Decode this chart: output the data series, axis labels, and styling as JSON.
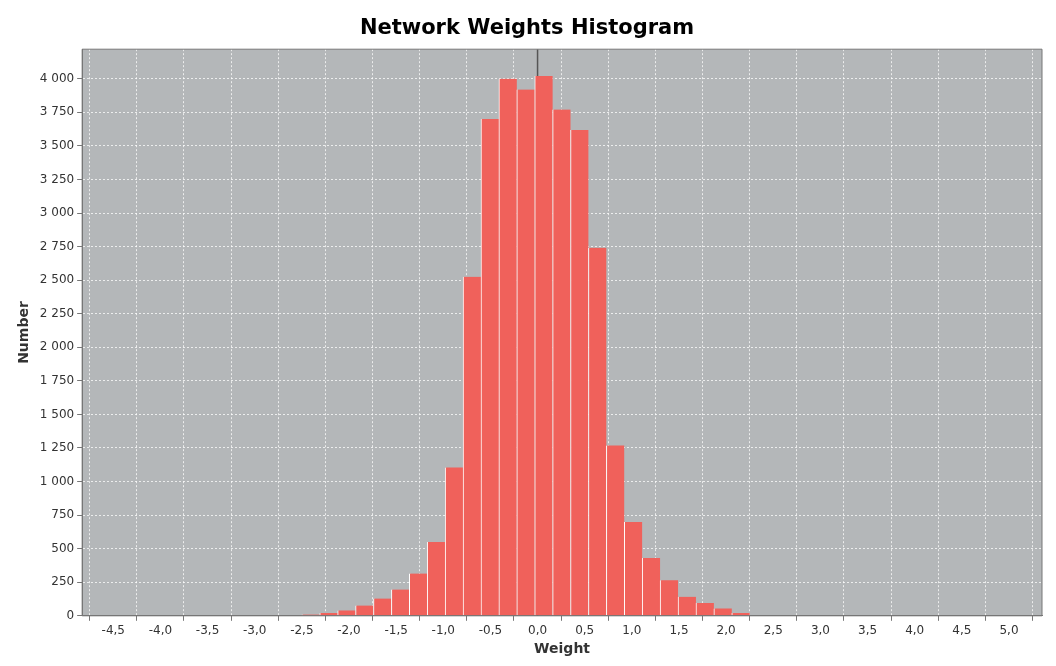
{
  "chart_data": {
    "type": "histogram",
    "title": "Network Weights Histogram",
    "xlabel": "Weight",
    "ylabel": "Number",
    "bins": [
      -3.07,
      -2.88,
      -2.69,
      -2.5,
      -2.31,
      -2.12,
      -1.93,
      -1.74,
      -1.55,
      -1.36,
      -1.17,
      -0.98,
      -0.79,
      -0.6,
      -0.41,
      -0.22,
      -0.03,
      0.16,
      0.35,
      0.54,
      0.73,
      0.92,
      1.11,
      1.3,
      1.49,
      1.68,
      1.87,
      2.06,
      2.25,
      2.44,
      2.63,
      2.82,
      3.01,
      3.2
    ],
    "values": [
      null,
      5,
      null,
      10,
      20,
      40,
      77,
      129,
      196,
      315,
      550,
      1105,
      2525,
      3700,
      4000,
      3920,
      4020,
      3770,
      3618,
      2741,
      1269,
      699,
      431,
      265,
      141,
      95,
      55,
      20,
      null,
      4,
      null,
      null,
      null
    ],
    "color": "#f0615b",
    "xlim": [
      -4.83,
      5.35
    ],
    "xticks": [
      {
        "value": -4.5,
        "label": "-4,5"
      },
      {
        "value": -4,
        "label": "-4,0"
      },
      {
        "value": -3.5,
        "label": "-3,5"
      },
      {
        "value": -3,
        "label": "-3,0"
      },
      {
        "value": -2.5,
        "label": "-2,5"
      },
      {
        "value": -2,
        "label": "-2,0"
      },
      {
        "value": -1.5,
        "label": "-1,5"
      },
      {
        "value": -1,
        "label": "-1,0"
      },
      {
        "value": -0.5,
        "label": "-0,5"
      },
      {
        "value": 0,
        "label": "0,0"
      },
      {
        "value": 0.5,
        "label": "0,5"
      },
      {
        "value": 1,
        "label": "1,0"
      },
      {
        "value": 1.5,
        "label": "1,5"
      },
      {
        "value": 2,
        "label": "2,0"
      },
      {
        "value": 2.5,
        "label": "2,5"
      },
      {
        "value": 3,
        "label": "3,0"
      },
      {
        "value": 3.5,
        "label": "3,5"
      },
      {
        "value": 4,
        "label": "4,0"
      },
      {
        "value": 4.5,
        "label": "4,5"
      },
      {
        "value": 5,
        "label": "5,0"
      }
    ],
    "ylim": [
      0,
      4220
    ],
    "yticks": [
      0,
      250,
      500,
      750,
      {
        "value": 1000,
        "label": "1 000"
      },
      {
        "value": 1250,
        "label": "1 250"
      },
      {
        "value": 1500,
        "label": "1 500"
      },
      {
        "value": 1750,
        "label": "1 750"
      },
      {
        "value": 2000,
        "label": "2 000"
      },
      {
        "value": 2250,
        "label": "2 250"
      },
      {
        "value": 2500,
        "label": "2 500"
      },
      {
        "value": 2750,
        "label": "2 750"
      },
      {
        "value": 3000,
        "label": "3 000"
      },
      {
        "value": 3250,
        "label": "3 250"
      },
      {
        "value": 3500,
        "label": "3 500"
      },
      {
        "value": 3750,
        "label": "3 750"
      },
      {
        "value": 4000,
        "label": "4 000"
      }
    ],
    "grid": true,
    "ref_lines": [
      {
        "axis": "x",
        "value": 0,
        "color": "#555555"
      }
    ]
  }
}
